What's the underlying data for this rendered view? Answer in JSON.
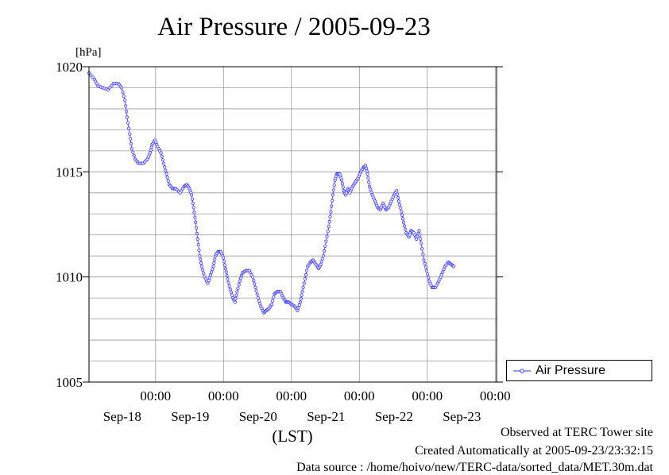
{
  "title": "Air Pressure / 2005-09-23",
  "chart_data": {
    "type": "line",
    "ylabel": "[hPa]",
    "xlabel": "(LST)",
    "ylim": [
      1005,
      1020
    ],
    "yticks": [
      1005,
      1010,
      1015,
      1020
    ],
    "xlim": [
      -0.98,
      5.02
    ],
    "xticks": [
      {
        "pos": 0,
        "time": "00:00",
        "date": "Sep-18"
      },
      {
        "pos": 1,
        "time": "00:00",
        "date": "Sep-19"
      },
      {
        "pos": 2,
        "time": "00:00",
        "date": "Sep-20"
      },
      {
        "pos": 3,
        "time": "00:00",
        "date": "Sep-21"
      },
      {
        "pos": 4,
        "time": "00:00",
        "date": "Sep-22"
      },
      {
        "pos": 5,
        "time": "00:00",
        "date": "Sep-23"
      }
    ],
    "grid": true,
    "legend_position": "bottom-right, outside plot",
    "series": [
      {
        "name": "Air Pressure",
        "color": "#3333ff",
        "marker": "circle",
        "points": [
          [
            -0.98,
            1019.7
          ],
          [
            -0.9,
            1019.4
          ],
          [
            -0.85,
            1019.1
          ],
          [
            -0.78,
            1019.0
          ],
          [
            -0.7,
            1018.9
          ],
          [
            -0.62,
            1019.2
          ],
          [
            -0.55,
            1019.2
          ],
          [
            -0.5,
            1019.0
          ],
          [
            -0.45,
            1018.4
          ],
          [
            -0.42,
            1017.6
          ],
          [
            -0.38,
            1016.8
          ],
          [
            -0.35,
            1016.1
          ],
          [
            -0.3,
            1015.6
          ],
          [
            -0.25,
            1015.4
          ],
          [
            -0.18,
            1015.4
          ],
          [
            -0.12,
            1015.6
          ],
          [
            -0.08,
            1015.9
          ],
          [
            -0.05,
            1016.3
          ],
          [
            -0.01,
            1016.5
          ],
          [
            0.03,
            1016.2
          ],
          [
            0.08,
            1015.9
          ],
          [
            0.12,
            1015.4
          ],
          [
            0.16,
            1014.9
          ],
          [
            0.2,
            1014.4
          ],
          [
            0.25,
            1014.2
          ],
          [
            0.3,
            1014.2
          ],
          [
            0.36,
            1014.0
          ],
          [
            0.42,
            1014.3
          ],
          [
            0.46,
            1014.4
          ],
          [
            0.5,
            1014.2
          ],
          [
            0.53,
            1013.9
          ],
          [
            0.56,
            1013.3
          ],
          [
            0.59,
            1012.6
          ],
          [
            0.62,
            1011.8
          ],
          [
            0.65,
            1011.0
          ],
          [
            0.68,
            1010.5
          ],
          [
            0.72,
            1010.0
          ],
          [
            0.77,
            1009.7
          ],
          [
            0.81,
            1010.1
          ],
          [
            0.85,
            1010.5
          ],
          [
            0.88,
            1011.0
          ],
          [
            0.92,
            1011.2
          ],
          [
            0.96,
            1011.2
          ],
          [
            1.0,
            1010.9
          ],
          [
            1.03,
            1010.4
          ],
          [
            1.06,
            1009.9
          ],
          [
            1.1,
            1009.4
          ],
          [
            1.14,
            1009.0
          ],
          [
            1.17,
            1008.8
          ],
          [
            1.2,
            1009.3
          ],
          [
            1.24,
            1009.8
          ],
          [
            1.28,
            1010.2
          ],
          [
            1.33,
            1010.3
          ],
          [
            1.38,
            1010.3
          ],
          [
            1.43,
            1010.0
          ],
          [
            1.47,
            1009.5
          ],
          [
            1.51,
            1009.0
          ],
          [
            1.55,
            1008.6
          ],
          [
            1.59,
            1008.3
          ],
          [
            1.63,
            1008.4
          ],
          [
            1.67,
            1008.5
          ],
          [
            1.71,
            1008.7
          ],
          [
            1.75,
            1009.2
          ],
          [
            1.79,
            1009.3
          ],
          [
            1.84,
            1009.3
          ],
          [
            1.88,
            1009.0
          ],
          [
            1.92,
            1008.8
          ],
          [
            1.96,
            1008.8
          ],
          [
            2.0,
            1008.7
          ],
          [
            2.05,
            1008.6
          ],
          [
            2.09,
            1008.4
          ],
          [
            2.13,
            1008.8
          ],
          [
            2.16,
            1009.3
          ],
          [
            2.2,
            1009.9
          ],
          [
            2.24,
            1010.5
          ],
          [
            2.28,
            1010.7
          ],
          [
            2.32,
            1010.8
          ],
          [
            2.36,
            1010.6
          ],
          [
            2.4,
            1010.4
          ],
          [
            2.43,
            1010.6
          ],
          [
            2.47,
            1011.0
          ],
          [
            2.51,
            1011.7
          ],
          [
            2.55,
            1012.4
          ],
          [
            2.58,
            1013.1
          ],
          [
            2.61,
            1013.9
          ],
          [
            2.64,
            1014.6
          ],
          [
            2.67,
            1014.9
          ],
          [
            2.71,
            1014.9
          ],
          [
            2.74,
            1014.6
          ],
          [
            2.77,
            1014.1
          ],
          [
            2.8,
            1013.9
          ],
          [
            2.83,
            1014.2
          ],
          [
            2.86,
            1014.0
          ],
          [
            2.9,
            1014.3
          ],
          [
            2.94,
            1014.5
          ],
          [
            2.98,
            1014.7
          ],
          [
            3.02,
            1015.0
          ],
          [
            3.06,
            1015.2
          ],
          [
            3.09,
            1015.3
          ],
          [
            3.12,
            1014.9
          ],
          [
            3.15,
            1014.3
          ],
          [
            3.19,
            1013.9
          ],
          [
            3.23,
            1013.6
          ],
          [
            3.27,
            1013.3
          ],
          [
            3.31,
            1013.2
          ],
          [
            3.35,
            1013.5
          ],
          [
            3.39,
            1013.2
          ],
          [
            3.43,
            1013.3
          ],
          [
            3.47,
            1013.6
          ],
          [
            3.51,
            1013.9
          ],
          [
            3.55,
            1014.1
          ],
          [
            3.58,
            1013.6
          ],
          [
            3.62,
            1013.1
          ],
          [
            3.65,
            1012.6
          ],
          [
            3.69,
            1012.1
          ],
          [
            3.73,
            1011.9
          ],
          [
            3.76,
            1012.2
          ],
          [
            3.8,
            1012.1
          ],
          [
            3.84,
            1011.8
          ],
          [
            3.88,
            1012.2
          ],
          [
            3.91,
            1011.6
          ],
          [
            3.95,
            1010.8
          ],
          [
            3.99,
            1010.3
          ],
          [
            4.03,
            1009.8
          ],
          [
            4.07,
            1009.5
          ],
          [
            4.12,
            1009.5
          ],
          [
            4.17,
            1009.8
          ],
          [
            4.21,
            1010.1
          ],
          [
            4.26,
            1010.5
          ],
          [
            4.31,
            1010.7
          ],
          [
            4.35,
            1010.6
          ],
          [
            4.39,
            1010.5
          ]
        ]
      }
    ]
  },
  "footer": {
    "line1": "Observed at TERC Tower site",
    "line2": "Created Automatically at 2005-09-23/23:32:15",
    "line3": "Data source : /home/hoivo/new/TERC-data/sorted_data/MET.30m.dat"
  }
}
